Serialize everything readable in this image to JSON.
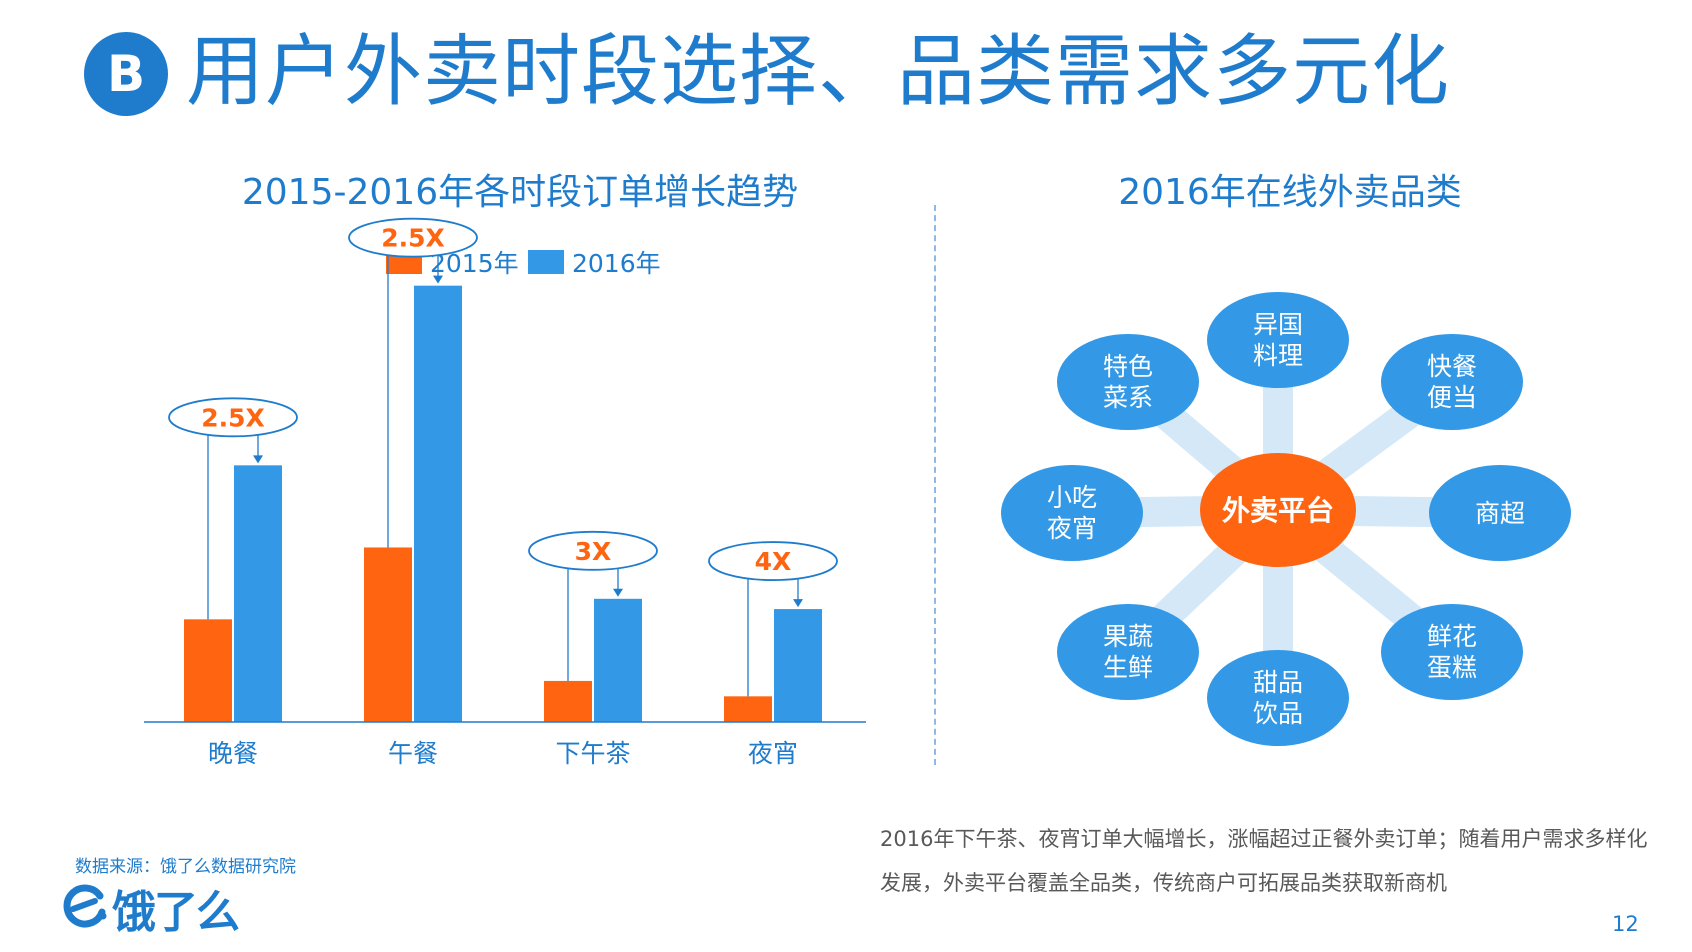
{
  "header": {
    "badge": "B",
    "title": "用户外卖时段选择、品类需求多元化"
  },
  "left_section": {
    "title": "2015-2016年各时段订单增长趋势"
  },
  "right_section": {
    "title": "2016年在线外卖品类"
  },
  "chart_data": {
    "type": "bar",
    "title": "2015-2016年各时段订单增长趋势",
    "categories": [
      "晚餐",
      "午餐",
      "下午茶",
      "夜宵"
    ],
    "series": [
      {
        "name": "2015年",
        "values": [
          1.0,
          1.7,
          0.4,
          0.25
        ],
        "color": "#ff6511"
      },
      {
        "name": "2016年",
        "values": [
          2.5,
          4.25,
          1.2,
          1.1
        ],
        "color": "#3399e6"
      }
    ],
    "annotations": [
      "2.5X",
      "2.5X",
      "3X",
      "4X"
    ],
    "annotation_color": "#ff6511",
    "legend_position": "top-center",
    "axis_line_color": "#1f7ccd",
    "category_label_color": "#1f7ccd",
    "ylim": [
      0,
      4.5
    ],
    "grid": false
  },
  "categories_hub": {
    "center": "外卖平台",
    "center_color": "#ff6511",
    "node_color": "#3399e6",
    "spoke_color": "#d4e8f8",
    "nodes": [
      {
        "lines": [
          "异国",
          "料理"
        ]
      },
      {
        "lines": [
          "快餐",
          "便当"
        ]
      },
      {
        "lines": [
          "商超"
        ]
      },
      {
        "lines": [
          "鲜花",
          "蛋糕"
        ]
      },
      {
        "lines": [
          "甜品",
          "饮品"
        ]
      },
      {
        "lines": [
          "果蔬",
          "生鲜"
        ]
      },
      {
        "lines": [
          "小吃",
          "夜宵"
        ]
      },
      {
        "lines": [
          "特色",
          "菜系"
        ]
      }
    ]
  },
  "summary": "2016年下午茶、夜宵订单大幅增长，涨幅超过正餐外卖订单；随着用户需求多样化发展，外卖平台覆盖全品类，传统商户可拓展品类获取新商机",
  "footer": {
    "source": "数据来源：饿了么数据研究院",
    "logo_text": "饿了么",
    "page_number": "12"
  }
}
